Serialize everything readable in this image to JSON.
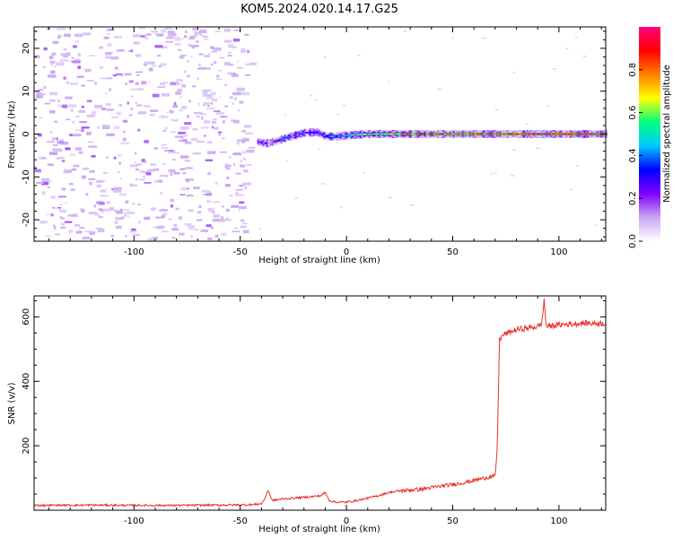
{
  "figure": {
    "title": "KOM5.2024.020.14.17.G25"
  },
  "chart_data": [
    {
      "type": "heatmap",
      "xlabel": "Height of straight line (km)",
      "ylabel": "Frequency (Hz)",
      "xlim": [
        -147,
        122
      ],
      "ylim": [
        -25,
        25
      ],
      "xticks": [
        -100,
        -50,
        0,
        50,
        100
      ],
      "yticks": [
        -20,
        -10,
        0,
        10,
        20
      ],
      "xtick_labels": [
        "-100",
        "-50",
        "0",
        "50",
        "100"
      ],
      "ytick_labels": [
        "-20",
        "-10",
        "0",
        "10",
        "20"
      ],
      "colorbar": {
        "label": "Normalized spectral amplitude",
        "range": [
          0,
          1
        ],
        "ticks": [
          0.0,
          0.2,
          0.4,
          0.6,
          0.8
        ],
        "tick_labels": [
          "0.0",
          "0.2",
          "0.4",
          "0.6",
          "0.8"
        ],
        "colormap": [
          "#ffffff",
          "#c9a6f2",
          "#8000ff",
          "#0000ff",
          "#00c8ff",
          "#00ff80",
          "#ffff00",
          "#ff8000",
          "#ff0000",
          "#ff0080"
        ]
      },
      "signal_trace": {
        "x": [
          -42,
          -38,
          -33,
          -27,
          -20,
          -14,
          -10,
          -6,
          0,
          10,
          30,
          60,
          90,
          122
        ],
        "frequency": [
          -1.8,
          -2.2,
          -1.6,
          -0.6,
          0.3,
          0.4,
          -0.5,
          -0.6,
          -0.3,
          0.0,
          0.0,
          0.0,
          0.0,
          0.0
        ],
        "amplitude": [
          0.25,
          0.2,
          0.3,
          0.35,
          0.3,
          0.25,
          0.35,
          0.45,
          0.5,
          0.6,
          0.75,
          0.85,
          0.9,
          0.95
        ]
      },
      "noise_region_x": [
        -147,
        -44
      ]
    },
    {
      "type": "line",
      "xlabel": "Height of straight line (km)",
      "ylabel": "SNR (v/v)",
      "xlim": [
        -147,
        122
      ],
      "ylim": [
        0,
        665
      ],
      "xticks": [
        -100,
        -50,
        0,
        50,
        100
      ],
      "yticks": [
        200,
        400,
        600
      ],
      "xtick_labels": [
        "-100",
        "-50",
        "0",
        "50",
        "100"
      ],
      "ytick_labels": [
        "200",
        "400",
        "600"
      ],
      "series": [
        {
          "color": "#e8322e",
          "x": [
            -147,
            -120,
            -100,
            -80,
            -60,
            -45,
            -40,
            -38,
            -37,
            -35,
            -30,
            -20,
            -12,
            -10,
            -8,
            -5,
            0,
            5,
            15,
            20,
            25,
            35,
            45,
            55,
            65,
            70,
            71,
            72,
            74,
            80,
            90,
            92,
            93,
            94,
            100,
            110,
            122
          ],
          "y": [
            15,
            16,
            15,
            15,
            16,
            17,
            20,
            40,
            65,
            30,
            35,
            40,
            45,
            55,
            30,
            25,
            25,
            30,
            45,
            55,
            60,
            65,
            75,
            85,
            100,
            105,
            200,
            530,
            545,
            560,
            570,
            580,
            655,
            570,
            575,
            580,
            580
          ]
        }
      ]
    }
  ]
}
